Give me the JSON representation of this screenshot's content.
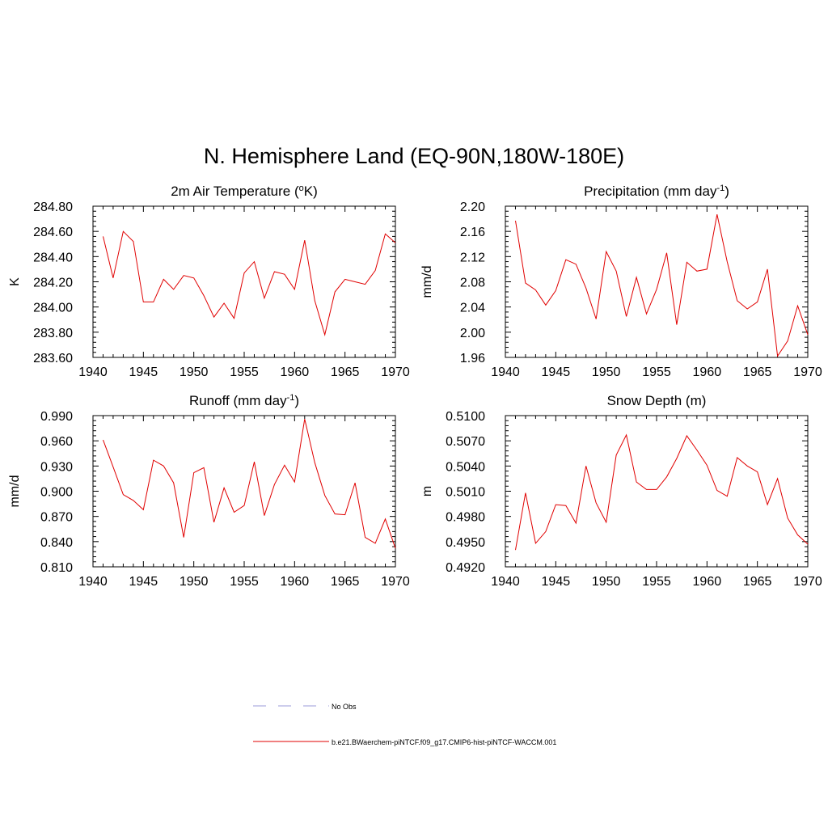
{
  "figure_title": "N. Hemisphere Land (EQ-90N,180W-180E)",
  "legend": {
    "entries": [
      {
        "label": "No Obs",
        "color": "#9b9bd8",
        "style": "dashed"
      },
      {
        "label": "b.e21.BWaerchem-piNTCF.f09_g17.CMIP6-hist-piNTCF-WACCM.001",
        "color": "#e00000",
        "style": "solid"
      }
    ]
  },
  "chart_data": [
    {
      "type": "line",
      "title": "2m Air Temperature (ºK)",
      "title_parts": {
        "pre": "2m Air Temperature (",
        "sup": "o",
        "post": "K)"
      },
      "ylabel": "K",
      "xlim": [
        1940,
        1970
      ],
      "ylim": [
        283.6,
        284.8
      ],
      "xticks": [
        1940,
        1945,
        1950,
        1955,
        1960,
        1965,
        1970
      ],
      "yticks": [
        "283.60",
        "283.80",
        "284.00",
        "284.20",
        "284.40",
        "284.60",
        "284.80"
      ],
      "x": [
        1941,
        1942,
        1943,
        1944,
        1945,
        1946,
        1947,
        1948,
        1949,
        1950,
        1951,
        1952,
        1953,
        1954,
        1955,
        1956,
        1957,
        1958,
        1959,
        1960,
        1961,
        1962,
        1963,
        1964,
        1965,
        1966,
        1967,
        1968,
        1969,
        1970
      ],
      "series": [
        {
          "color": "#e00000",
          "values": [
            284.56,
            284.23,
            284.6,
            284.52,
            284.04,
            284.04,
            284.22,
            284.14,
            284.25,
            284.23,
            284.09,
            283.92,
            284.03,
            283.91,
            284.27,
            284.36,
            284.07,
            284.28,
            284.26,
            284.14,
            284.53,
            284.05,
            283.78,
            284.12,
            284.22,
            284.2,
            284.18,
            284.29,
            284.58,
            284.51
          ]
        }
      ]
    },
    {
      "type": "line",
      "title": "Precipitation (mm day-1)",
      "title_parts": {
        "pre": "Precipitation (mm day",
        "sup": "-1",
        "post": ")"
      },
      "ylabel": "mm/d",
      "xlim": [
        1940,
        1970
      ],
      "ylim": [
        1.96,
        2.2
      ],
      "xticks": [
        1940,
        1945,
        1950,
        1955,
        1960,
        1965,
        1970
      ],
      "yticks": [
        "1.96",
        "2.00",
        "2.04",
        "2.08",
        "2.12",
        "2.16",
        "2.20"
      ],
      "x": [
        1941,
        1942,
        1943,
        1944,
        1945,
        1946,
        1947,
        1948,
        1949,
        1950,
        1951,
        1952,
        1953,
        1954,
        1955,
        1956,
        1957,
        1958,
        1959,
        1960,
        1961,
        1962,
        1963,
        1964,
        1965,
        1966,
        1967,
        1968,
        1969,
        1970
      ],
      "series": [
        {
          "color": "#e00000",
          "values": [
            2.177,
            2.078,
            2.067,
            2.043,
            2.066,
            2.115,
            2.108,
            2.07,
            2.021,
            2.128,
            2.097,
            2.025,
            2.087,
            2.029,
            2.068,
            2.126,
            2.012,
            2.111,
            2.097,
            2.1,
            2.187,
            2.112,
            2.05,
            2.037,
            2.048,
            2.1,
            1.962,
            1.986,
            2.042,
            1.996
          ]
        }
      ]
    },
    {
      "type": "line",
      "title": "Runoff (mm day-1)",
      "title_parts": {
        "pre": "Runoff (mm day",
        "sup": "-1",
        "post": ")"
      },
      "ylabel": "mm/d",
      "xlim": [
        1940,
        1970
      ],
      "ylim": [
        0.81,
        0.99
      ],
      "xticks": [
        1940,
        1945,
        1950,
        1955,
        1960,
        1965,
        1970
      ],
      "yticks": [
        "0.810",
        "0.840",
        "0.870",
        "0.900",
        "0.930",
        "0.960",
        "0.990"
      ],
      "x": [
        1941,
        1942,
        1943,
        1944,
        1945,
        1946,
        1947,
        1948,
        1949,
        1950,
        1951,
        1952,
        1953,
        1954,
        1955,
        1956,
        1957,
        1958,
        1959,
        1960,
        1961,
        1962,
        1963,
        1964,
        1965,
        1966,
        1967,
        1968,
        1969,
        1970
      ],
      "series": [
        {
          "color": "#e00000",
          "values": [
            0.961,
            0.929,
            0.896,
            0.889,
            0.878,
            0.937,
            0.93,
            0.91,
            0.845,
            0.922,
            0.928,
            0.863,
            0.904,
            0.875,
            0.883,
            0.935,
            0.871,
            0.908,
            0.931,
            0.911,
            0.986,
            0.934,
            0.895,
            0.873,
            0.872,
            0.91,
            0.845,
            0.838,
            0.867,
            0.832
          ]
        }
      ]
    },
    {
      "type": "line",
      "title": "Snow Depth (m)",
      "title_parts": {
        "pre": "Snow Depth (m)",
        "sup": "",
        "post": ""
      },
      "ylabel": "m",
      "xlim": [
        1940,
        1970
      ],
      "ylim": [
        0.492,
        0.51
      ],
      "xticks": [
        1940,
        1945,
        1950,
        1955,
        1960,
        1965,
        1970
      ],
      "yticks": [
        "0.4920",
        "0.4950",
        "0.4980",
        "0.5010",
        "0.5040",
        "0.5070",
        "0.5100"
      ],
      "x": [
        1941,
        1942,
        1943,
        1944,
        1945,
        1946,
        1947,
        1948,
        1949,
        1950,
        1951,
        1952,
        1953,
        1954,
        1955,
        1956,
        1957,
        1958,
        1959,
        1960,
        1961,
        1962,
        1963,
        1964,
        1965,
        1966,
        1967,
        1968,
        1969,
        1970
      ],
      "series": [
        {
          "color": "#e00000",
          "values": [
            0.494,
            0.5008,
            0.4948,
            0.4962,
            0.4994,
            0.4993,
            0.4972,
            0.504,
            0.4996,
            0.4973,
            0.5053,
            0.5077,
            0.5021,
            0.5012,
            0.5012,
            0.5027,
            0.5049,
            0.5076,
            0.5059,
            0.5041,
            0.5011,
            0.5004,
            0.505,
            0.504,
            0.5033,
            0.4994,
            0.5025,
            0.4978,
            0.4958,
            0.4947
          ]
        }
      ]
    }
  ]
}
